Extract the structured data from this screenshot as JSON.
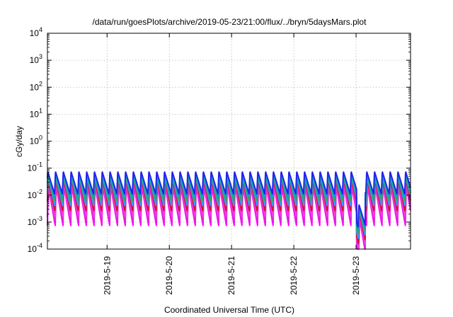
{
  "chart_data": {
    "type": "line",
    "title": "/data/run/goesPlots/archive/2019-05-23/21:00/flux/../bryn/5daysMars.plot",
    "xlabel": "Coordinated Universal Time (UTC)",
    "ylabel": "cGy/day",
    "yscale": "log",
    "ylim": [
      0.0001,
      10000
    ],
    "xlim": [
      "2019-05-18 01:00",
      "2019-05-23 21:00"
    ],
    "grid": true,
    "legend": "none",
    "x_ticks": [
      "2019-5-19",
      "2019-5-20",
      "2019-5-21",
      "2019-5-22",
      "2019-5-23"
    ],
    "y_ticks": [
      {
        "value": 0.0001,
        "base": "10",
        "exp": "-4"
      },
      {
        "value": 0.001,
        "base": "10",
        "exp": "-3"
      },
      {
        "value": 0.01,
        "base": "10",
        "exp": "-2"
      },
      {
        "value": 0.1,
        "base": "10",
        "exp": "-1"
      },
      {
        "value": 1,
        "base": "10",
        "exp": "0"
      },
      {
        "value": 10,
        "base": "10",
        "exp": "1"
      },
      {
        "value": 100,
        "base": "10",
        "exp": "2"
      },
      {
        "value": 1000,
        "base": "10",
        "exp": "3"
      },
      {
        "value": 10000,
        "base": "10",
        "exp": "4"
      }
    ],
    "cycle_hours": 3,
    "dropout": {
      "start": "2019-05-23 00:15",
      "end": "2019-05-23 03:30",
      "factor": 0.06
    },
    "series": [
      {
        "color": "#ff00ff",
        "peak": 0.022,
        "trough": 0.00075
      },
      {
        "color": "#cc33cc",
        "peak": 0.026,
        "trough": 0.0011
      },
      {
        "color": "#ff33ee",
        "peak": 0.03,
        "trough": 0.0016
      },
      {
        "color": "#d2122e",
        "peak": 0.038,
        "trough": 0.0025
      },
      {
        "color": "#3399ff",
        "peak": 0.048,
        "trough": 0.004
      },
      {
        "color": "#33aa55",
        "peak": 0.055,
        "trough": 0.006
      },
      {
        "color": "#00aabb",
        "peak": 0.06,
        "trough": 0.008
      },
      {
        "color": "#2222ee",
        "peak": 0.075,
        "trough": 0.011
      }
    ]
  }
}
